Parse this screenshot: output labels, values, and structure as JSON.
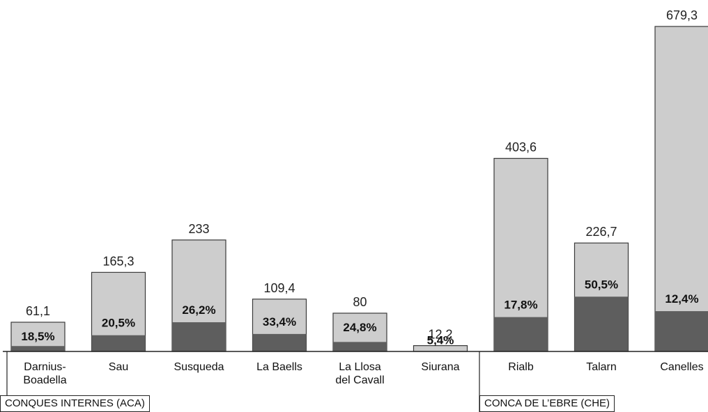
{
  "chart_data": {
    "type": "bar",
    "categories": [
      "Darnius-Boadella",
      "Sau",
      "Susqueda",
      "La Baells",
      "La Llosa del Cavall",
      "Siurana",
      "Rialb",
      "Talarn",
      "Canelles"
    ],
    "category_lines": [
      [
        "Darnius-",
        "Boadella"
      ],
      [
        "Sau"
      ],
      [
        "Susqueda"
      ],
      [
        "La Baells"
      ],
      [
        "La Llosa",
        "del Cavall"
      ],
      [
        "Siurana"
      ],
      [
        "Rialb"
      ],
      [
        "Talarn"
      ],
      [
        "Canelles"
      ]
    ],
    "value_labels": [
      "61,1",
      "165,3",
      "233",
      "109,4",
      "80",
      "12,2",
      "403,6",
      "226,7",
      "679,3"
    ],
    "values": [
      61.1,
      165.3,
      233,
      109.4,
      80,
      12.2,
      403.6,
      226.7,
      679.3
    ],
    "percent_labels": [
      "18,5%",
      "20,5%",
      "26,2%",
      "33,4%",
      "24,8%",
      "5,4%",
      "17,8%",
      "50,5%",
      "12,4%"
    ],
    "percents": [
      18.5,
      20.5,
      26.2,
      33.4,
      24.8,
      5.4,
      17.8,
      50.5,
      12.4
    ],
    "ylim": [
      0,
      679.3
    ],
    "groups": [
      {
        "label": "CONQUES INTERNES (ACA)",
        "categories": [
          "Darnius-Boadella",
          "Sau",
          "Susqueda",
          "La Baells",
          "La Llosa del Cavall",
          "Siurana"
        ]
      },
      {
        "label": "CONCA DE L’EBRE (CHE)",
        "categories": [
          "Rialb",
          "Talarn",
          "Canelles"
        ]
      }
    ],
    "colors": {
      "total": "#cdcdcd",
      "filled": "#5e5e5e",
      "outline": "#3a3a3a"
    },
    "grid": false,
    "legend": "none"
  }
}
